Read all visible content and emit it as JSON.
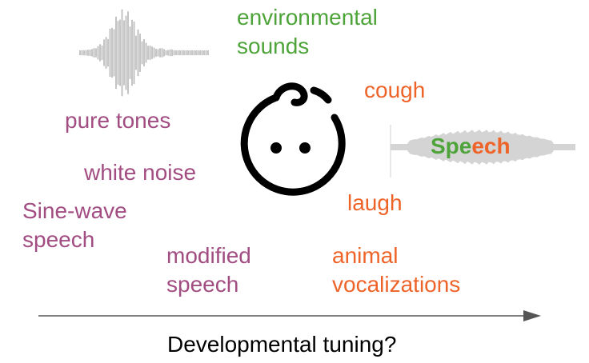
{
  "labels": {
    "environmental": [
      "environmental",
      "sounds"
    ],
    "pure_tones": "pure tones",
    "white_noise": "white noise",
    "sine_wave": [
      "Sine-wave",
      "speech"
    ],
    "modified_speech": [
      "modified",
      "speech"
    ],
    "cough": "cough",
    "laugh": "laugh",
    "animal": [
      "animal",
      "vocalizations"
    ],
    "speech_green": "Spe",
    "speech_orange": "ech"
  },
  "axis_label": "Developmental tuning?",
  "colors": {
    "green": "#4ea43a",
    "purple": "#a24d82",
    "orange": "#ee6328",
    "arrow": "#555555",
    "waveform": "#b5b5b5"
  },
  "icons": [
    "baby-face-icon",
    "waveform-left-icon",
    "waveform-speech-icon"
  ]
}
